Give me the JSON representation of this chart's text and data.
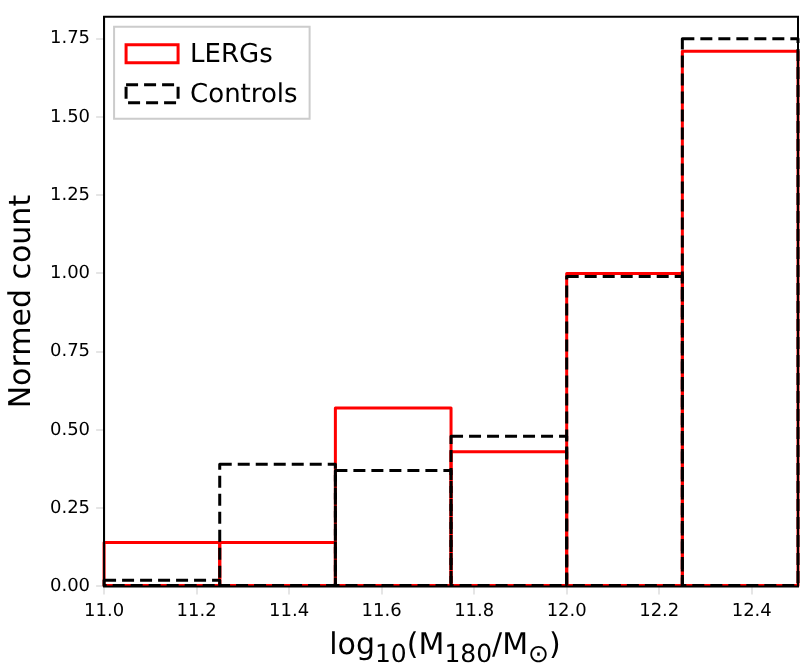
{
  "chart_data": {
    "type": "histogram",
    "xlabel": "log$_{10}$(M$_{180}$/M$_{⊙}$)",
    "ylabel": "Normed count",
    "bins": [
      11.0,
      11.25,
      11.5,
      11.75,
      12.0,
      12.25,
      12.5
    ],
    "series": [
      {
        "name": "LERGs",
        "color": "#ff0000",
        "line_style": "solid",
        "values": [
          0.14,
          0.14,
          0.57,
          0.43,
          1.0,
          1.71
        ]
      },
      {
        "name": "Controls",
        "color": "#000000",
        "line_style": "dashed",
        "values": [
          0.02,
          0.39,
          0.37,
          0.48,
          0.99,
          1.75
        ]
      }
    ],
    "xlim": [
      11.0,
      12.5
    ],
    "xticks": [
      {
        "value": 11.0,
        "label": "11.0"
      },
      {
        "value": 11.2,
        "label": "11.2"
      },
      {
        "value": 11.4,
        "label": "11.4"
      },
      {
        "value": 11.6,
        "label": "11.6"
      },
      {
        "value": 11.8,
        "label": "11.8"
      },
      {
        "value": 12.0,
        "label": "12.0"
      },
      {
        "value": 12.2,
        "label": "12.2"
      },
      {
        "value": 12.4,
        "label": "12.4"
      }
    ],
    "ylim": [
      0,
      1.82
    ],
    "yticks": [
      {
        "value": 0,
        "label": "0.00"
      },
      {
        "value": 0.25,
        "label": "0.25"
      },
      {
        "value": 0.5,
        "label": "0.50"
      },
      {
        "value": 0.75,
        "label": "0.75"
      },
      {
        "value": 1.0,
        "label": "1.00"
      },
      {
        "value": 1.25,
        "label": "1.25"
      },
      {
        "value": 1.5,
        "label": "1.50"
      },
      {
        "value": 1.75,
        "label": "1.75"
      }
    ],
    "grid": false,
    "legend": "top left"
  }
}
